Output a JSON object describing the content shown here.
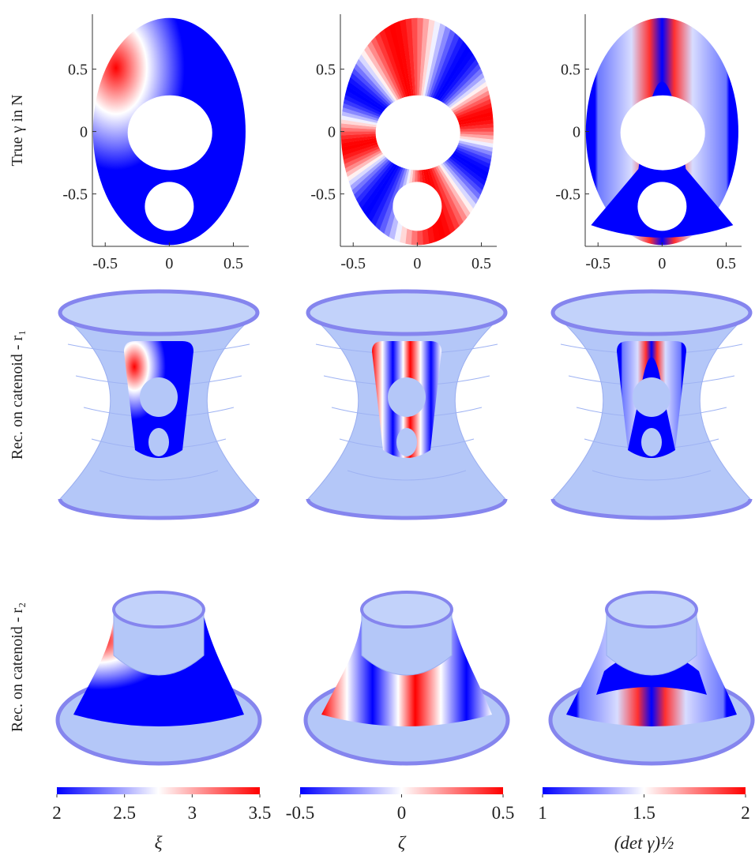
{
  "rows": [
    "True γ in N",
    "Rec. on catenoid - r₁",
    "Rec. on catenoid - r₂"
  ],
  "panel_axes": {
    "xlim": [
      -0.6,
      0.62
    ],
    "ylim": [
      -0.92,
      0.94
    ],
    "xticks": [
      -0.5,
      0,
      0.5
    ],
    "yticks": [
      -0.5,
      0,
      0.5
    ]
  },
  "colorbars": [
    {
      "label": "ξ",
      "lim": [
        2,
        3.5
      ],
      "ticks": [
        2,
        2.5,
        3,
        3.5
      ]
    },
    {
      "label": "ζ",
      "lim": [
        -0.5,
        0.5
      ],
      "ticks": [
        -0.5,
        0,
        0.5
      ]
    },
    {
      "label": "(det γ)½",
      "lim": [
        1,
        2
      ],
      "ticks": [
        1,
        1.5,
        2
      ]
    }
  ]
}
